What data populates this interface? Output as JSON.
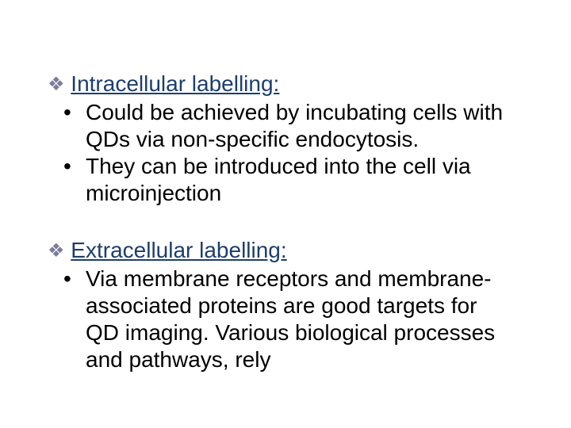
{
  "colors": {
    "diamond": "#7c7c9c",
    "heading": "#1c3e6e",
    "body": "#000000",
    "background": "#ffffff"
  },
  "typography": {
    "font_family": "Arial",
    "font_size_pt": 21,
    "line_height": 1.22
  },
  "section1": {
    "diamond": "❖",
    "title": "Intracellular labelling:",
    "bullets": [
      "Could be achieved by incubating cells with QDs via non-specific endocytosis.",
      "They can be introduced into the cell via microinjection"
    ]
  },
  "section2": {
    "diamond": "❖",
    "title": "Extracellular labelling:",
    "bullets": [
      "Via membrane receptors and membrane-associated proteins are good targets for    QD imaging. Various biological processes and pathways, rely"
    ]
  }
}
